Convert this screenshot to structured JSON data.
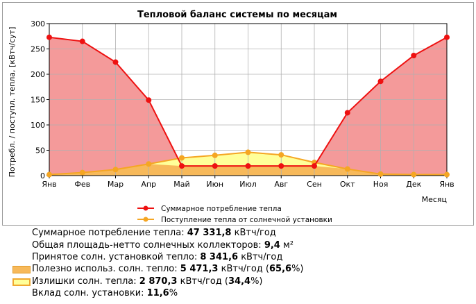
{
  "chart_data": {
    "type": "area",
    "title": "Тепловой баланс системы по месяцам",
    "ylabel": "Потребл. / поступл. тепла, [кВтч/сут]",
    "xlabel": "Месяц",
    "categories": [
      "Янв",
      "Фев",
      "Мар",
      "Апр",
      "Май",
      "Июн",
      "Июл",
      "Авг",
      "Сен",
      "Окт",
      "Ноя",
      "Дек",
      "Янв"
    ],
    "ylim": [
      0,
      300
    ],
    "yticks": [
      0,
      50,
      100,
      150,
      200,
      250,
      300
    ],
    "grid": true,
    "legend_position": "bottom",
    "series": [
      {
        "name": "Суммарное потребление тепла",
        "values": [
          273,
          265,
          224,
          149,
          19,
          19,
          19,
          19,
          19,
          124,
          186,
          237,
          273
        ],
        "color": "#ee1111",
        "fill": "#f49a9a"
      },
      {
        "name": "Поступление тепла от солнечной установки",
        "values": [
          2,
          6,
          12,
          23,
          35,
          40,
          46,
          41,
          26,
          13,
          3,
          2,
          2
        ],
        "color": "#f5a623",
        "fill": "#ffff99"
      }
    ],
    "fill_colors": {
      "useful": "#f7b95a",
      "excess": "#ffff99",
      "deficit": "#f49a9a"
    }
  },
  "stats": {
    "total_label": "Суммарное потребление тепла: ",
    "total_value": "47 331,8",
    "total_unit": " кВтч/год",
    "area_label": "Общая площадь-нетто солнечных коллекторов: ",
    "area_value": "9,4",
    "area_unit": " м²",
    "received_label": "Принятое солн. установкой тепло: ",
    "received_value": "8 341,6",
    "received_unit": " кВтч/год",
    "useful_label": "Полезно использ. солн. тепло: ",
    "useful_value": "5 471,3",
    "useful_unit": " кВтч/год (",
    "useful_pct": "65,6",
    "useful_end": "%)",
    "excess_label": "Излишки солн. тепла: ",
    "excess_value": "2 870,3",
    "excess_unit": " кВтч/год (",
    "excess_pct": "34,4",
    "excess_end": "%)",
    "share_label": "Вклад солн. установки: ",
    "share_value": "11,6",
    "share_end": "%"
  }
}
